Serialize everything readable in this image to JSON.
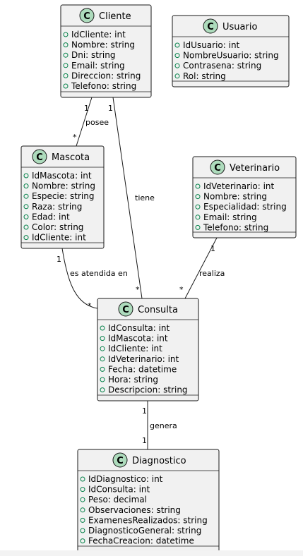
{
  "classes": {
    "cliente": {
      "badge": "C",
      "name": "Cliente",
      "attributes": [
        "IdCliente: int",
        "Nombre: string",
        "Dni: string",
        "Email: string",
        "Direccion: string",
        "Telefono: string"
      ]
    },
    "usuario": {
      "badge": "C",
      "name": "Usuario",
      "attributes": [
        "IdUsuario: int",
        "NombreUsuario: string",
        "Contrasena: string",
        "Rol: string"
      ]
    },
    "mascota": {
      "badge": "C",
      "name": "Mascota",
      "attributes": [
        "IdMascota: int",
        "Nombre: string",
        "Especie: string",
        "Raza: string",
        "Edad: int",
        "Color: string",
        "IdCliente: int"
      ]
    },
    "veterinario": {
      "badge": "C",
      "name": "Veterinario",
      "attributes": [
        "IdVeterinario: int",
        "Nombre: string",
        "Especialidad: string",
        "Email: string",
        "Telefono: string"
      ]
    },
    "consulta": {
      "badge": "C",
      "name": "Consulta",
      "attributes": [
        "IdConsulta: int",
        "IdMascota: int",
        "IdCliente: int",
        "IdVeterinario: int",
        "Fecha: datetime",
        "Hora: string",
        "Descripcion: string"
      ]
    },
    "diagnostico": {
      "badge": "C",
      "name": "Diagnostico",
      "attributes": [
        "IdDiagnostico: int",
        "IdConsulta: int",
        "Peso: decimal",
        "Observaciones: string",
        "ExamenesRealizados: string",
        "DiagnosticoGeneral: string",
        "FechaCreacion: datetime"
      ]
    }
  },
  "relations": {
    "posee": {
      "label": "posee",
      "from_mult": "1",
      "to_mult": "*"
    },
    "tiene": {
      "label": "tiene",
      "from_mult": "1",
      "to_mult": "*"
    },
    "atendida": {
      "label": "es atendida en",
      "from_mult": "1",
      "to_mult": "*"
    },
    "realiza": {
      "label": "realiza",
      "from_mult": "1",
      "to_mult": "*"
    },
    "genera": {
      "label": "genera",
      "from_mult": "1",
      "to_mult": "1"
    }
  },
  "colors": {
    "class_fill": "#f1f1f1",
    "badge_fill": "#addbbc",
    "visibility_marker": "#038048",
    "stroke": "#181818"
  }
}
